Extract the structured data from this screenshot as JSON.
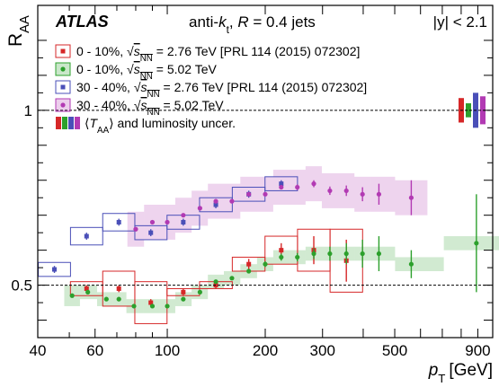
{
  "chart_data": {
    "type": "scatter",
    "title_tag": "ATLAS",
    "title_mid": "anti-k_t, R = 0.4 jets",
    "title_right": "|y| < 2.1",
    "xlabel": "p_T [GeV]",
    "ylabel": "R_AA",
    "x_scale": "log",
    "xlim": [
      40,
      1000
    ],
    "ylim": [
      0.35,
      1.3
    ],
    "x_ticks": [
      40,
      60,
      100,
      200,
      300,
      500,
      900
    ],
    "y_ticks": [
      0.5,
      1
    ],
    "reference_line": 1.0,
    "secondary_line": 0.5,
    "grid": false,
    "legend_placement": "top-left",
    "legend_note": "⟨T_AA⟩ and luminosity uncer.",
    "series": [
      {
        "name": "0 - 10%, √s_NN = 2.76 TeV [PRL 114 (2015) 072302]",
        "color": "#d62728",
        "sys_fill": false,
        "x": [
          56.5,
          71,
          89,
          112,
          141,
          178,
          224,
          282,
          355
        ],
        "y": [
          0.49,
          0.49,
          0.45,
          0.48,
          0.5,
          0.56,
          0.6,
          0.6,
          0.57
        ],
        "stat": [
          0.01,
          0.01,
          0.01,
          0.01,
          0.01,
          0.015,
          0.02,
          0.04,
          0.06
        ],
        "sys": [
          0.02,
          0.05,
          0.06,
          0.01,
          0.01,
          0.02,
          0.04,
          0.06,
          0.09
        ]
      },
      {
        "name": "0 - 10%, √s_NN = 5.02 TeV",
        "color": "#2ca02c",
        "sys_fill": true,
        "x": [
          51,
          57,
          65,
          71,
          79,
          90,
          100,
          112,
          126,
          141,
          158,
          178,
          200,
          224,
          251,
          282,
          316,
          355,
          398,
          447,
          562,
          891
        ],
        "y": [
          0.47,
          0.48,
          0.46,
          0.46,
          0.44,
          0.44,
          0.44,
          0.46,
          0.48,
          0.51,
          0.52,
          0.54,
          0.56,
          0.58,
          0.58,
          0.59,
          0.59,
          0.59,
          0.59,
          0.59,
          0.56,
          0.62
        ],
        "stat": [
          0.005,
          0.005,
          0.005,
          0.005,
          0.005,
          0.005,
          0.005,
          0.005,
          0.005,
          0.005,
          0.005,
          0.005,
          0.008,
          0.01,
          0.012,
          0.015,
          0.02,
          0.03,
          0.04,
          0.05,
          0.04,
          0.14
        ],
        "sys": [
          0.03,
          0.02,
          0.02,
          0.02,
          0.02,
          0.02,
          0.02,
          0.02,
          0.02,
          0.02,
          0.02,
          0.02,
          0.02,
          0.02,
          0.02,
          0.02,
          0.02,
          0.02,
          0.02,
          0.02,
          0.02,
          0.02
        ]
      },
      {
        "name": "30 - 40%, √s_NN = 2.76 TeV [PRL 114 (2015) 072302]",
        "color": "#4a4fb8",
        "sys_fill": false,
        "x": [
          45,
          56.5,
          71,
          89,
          112,
          141,
          178,
          224
        ],
        "y": [
          0.545,
          0.64,
          0.68,
          0.65,
          0.68,
          0.73,
          0.76,
          0.79
        ],
        "stat": [
          0.01,
          0.01,
          0.01,
          0.01,
          0.01,
          0.01,
          0.01,
          0.01
        ],
        "sys": [
          0.02,
          0.025,
          0.025,
          0.02,
          0.02,
          0.02,
          0.02,
          0.02
        ]
      },
      {
        "name": "30 - 40%, √s_NN = 5.02 TeV",
        "color": "#b23ab3",
        "sys_fill": true,
        "x": [
          80,
          90,
          100,
          112,
          126,
          141,
          158,
          178,
          200,
          224,
          251,
          282,
          316,
          355,
          398,
          447,
          562
        ],
        "y": [
          0.66,
          0.68,
          0.68,
          0.7,
          0.72,
          0.74,
          0.74,
          0.76,
          0.76,
          0.78,
          0.78,
          0.79,
          0.77,
          0.77,
          0.76,
          0.76,
          0.75
        ],
        "stat": [
          0.005,
          0.005,
          0.005,
          0.005,
          0.005,
          0.005,
          0.005,
          0.005,
          0.005,
          0.005,
          0.008,
          0.01,
          0.012,
          0.015,
          0.02,
          0.03,
          0.05
        ],
        "sys": [
          0.05,
          0.05,
          0.05,
          0.05,
          0.05,
          0.05,
          0.05,
          0.05,
          0.05,
          0.05,
          0.05,
          0.05,
          0.05,
          0.05,
          0.05,
          0.05,
          0.05
        ]
      }
    ]
  }
}
